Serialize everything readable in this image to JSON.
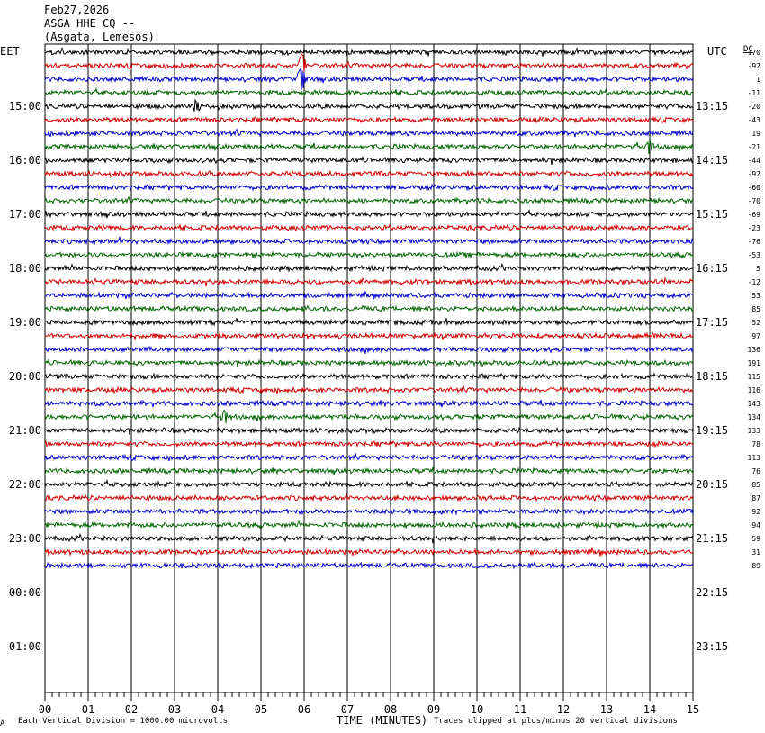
{
  "header": {
    "date": "Feb27,2026",
    "station": "ASGA HHE CQ --",
    "location": "(Asgata, Lemesos)",
    "left_tz": "EET",
    "right_tz": "UTC",
    "dc_label": "DC"
  },
  "footer": {
    "corner_mark": "A",
    "scale_note": "Each Vertical Division = 1000.00 microvolts",
    "xlabel": "TIME (MINUTES)",
    "clip_note": "Traces clipped at plus/minus 20 vertical divisions"
  },
  "chart_data": {
    "type": "line",
    "subtype": "helicorder",
    "xlabel": "TIME (MINUTES)",
    "xlim": [
      0,
      15
    ],
    "x_ticks": [
      "00",
      "01",
      "02",
      "03",
      "04",
      "05",
      "06",
      "07",
      "08",
      "09",
      "10",
      "11",
      "12",
      "13",
      "14",
      "15"
    ],
    "grid": "vertical lines every minute",
    "left_hour_labels": [
      "15:00",
      "16:00",
      "17:00",
      "18:00",
      "19:00",
      "20:00",
      "21:00",
      "22:00",
      "23:00",
      "00:00",
      "01:00"
    ],
    "right_hour_labels": [
      "13:15",
      "14:15",
      "15:15",
      "16:15",
      "17:15",
      "18:15",
      "19:15",
      "20:15",
      "21:15",
      "22:15",
      "23:15"
    ],
    "trace_colors": [
      "#000000",
      "#d40000",
      "#0000cc",
      "#006400"
    ],
    "traces_per_hour": 4,
    "trace_count": 39,
    "dc_offsets": [
      "170",
      "-92",
      "1",
      "-11",
      "-20",
      "-43",
      "19",
      "-21",
      "-44",
      "-92",
      "-60",
      "-70",
      "-69",
      "-23",
      "-76",
      "-53",
      "5",
      "-12",
      "53",
      "85",
      "52",
      "97",
      "136",
      "191",
      "115",
      "116",
      "143",
      "134",
      "133",
      "78",
      "113",
      "76",
      "85",
      "87",
      "92",
      "94",
      "59",
      "31",
      "89"
    ],
    "events": [
      {
        "trace": 1,
        "minute": 5.95,
        "amplitude": "large"
      },
      {
        "trace": 2,
        "minute": 5.93,
        "amplitude": "large"
      },
      {
        "trace": 4,
        "minute": 3.5,
        "amplitude": "medium"
      },
      {
        "trace": 7,
        "minute": 14.0,
        "amplitude": "medium"
      },
      {
        "trace": 27,
        "minute": 4.15,
        "amplitude": "medium"
      }
    ]
  }
}
